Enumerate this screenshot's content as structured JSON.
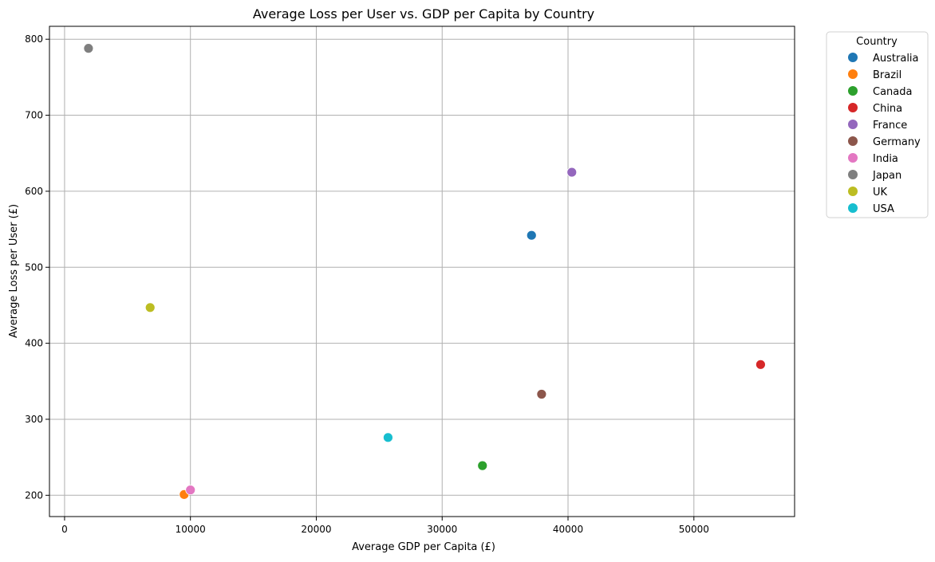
{
  "chart_data": {
    "type": "scatter",
    "title": "Average Loss per User vs. GDP per Capita by Country",
    "xlabel": "Average GDP per Capita (£)",
    "ylabel": "Average Loss per User (£)",
    "xlim": [
      -1200,
      58000
    ],
    "ylim": [
      172,
      817
    ],
    "x_ticks": [
      0,
      10000,
      20000,
      30000,
      40000,
      50000
    ],
    "y_ticks": [
      200,
      300,
      400,
      500,
      600,
      700,
      800
    ],
    "grid": true,
    "legend": {
      "title": "Country",
      "placement": "outside-top-right"
    },
    "series": [
      {
        "name": "Australia",
        "color": "#1f77b4",
        "x": [
          37100
        ],
        "y": [
          542
        ]
      },
      {
        "name": "Brazil",
        "color": "#ff7f0e",
        "x": [
          9500
        ],
        "y": [
          201
        ]
      },
      {
        "name": "Canada",
        "color": "#2ca02c",
        "x": [
          33200
        ],
        "y": [
          239
        ]
      },
      {
        "name": "China",
        "color": "#d62728",
        "x": [
          55300
        ],
        "y": [
          372
        ]
      },
      {
        "name": "France",
        "color": "#9467bd",
        "x": [
          40300
        ],
        "y": [
          625
        ]
      },
      {
        "name": "Germany",
        "color": "#8c564b",
        "x": [
          37900
        ],
        "y": [
          333
        ]
      },
      {
        "name": "India",
        "color": "#e377c2",
        "x": [
          10000
        ],
        "y": [
          207
        ]
      },
      {
        "name": "Japan",
        "color": "#7f7f7f",
        "x": [
          1900
        ],
        "y": [
          788
        ]
      },
      {
        "name": "UK",
        "color": "#bcbd22",
        "x": [
          6800
        ],
        "y": [
          447
        ]
      },
      {
        "name": "USA",
        "color": "#17becf",
        "x": [
          25700
        ],
        "y": [
          276
        ]
      }
    ]
  }
}
